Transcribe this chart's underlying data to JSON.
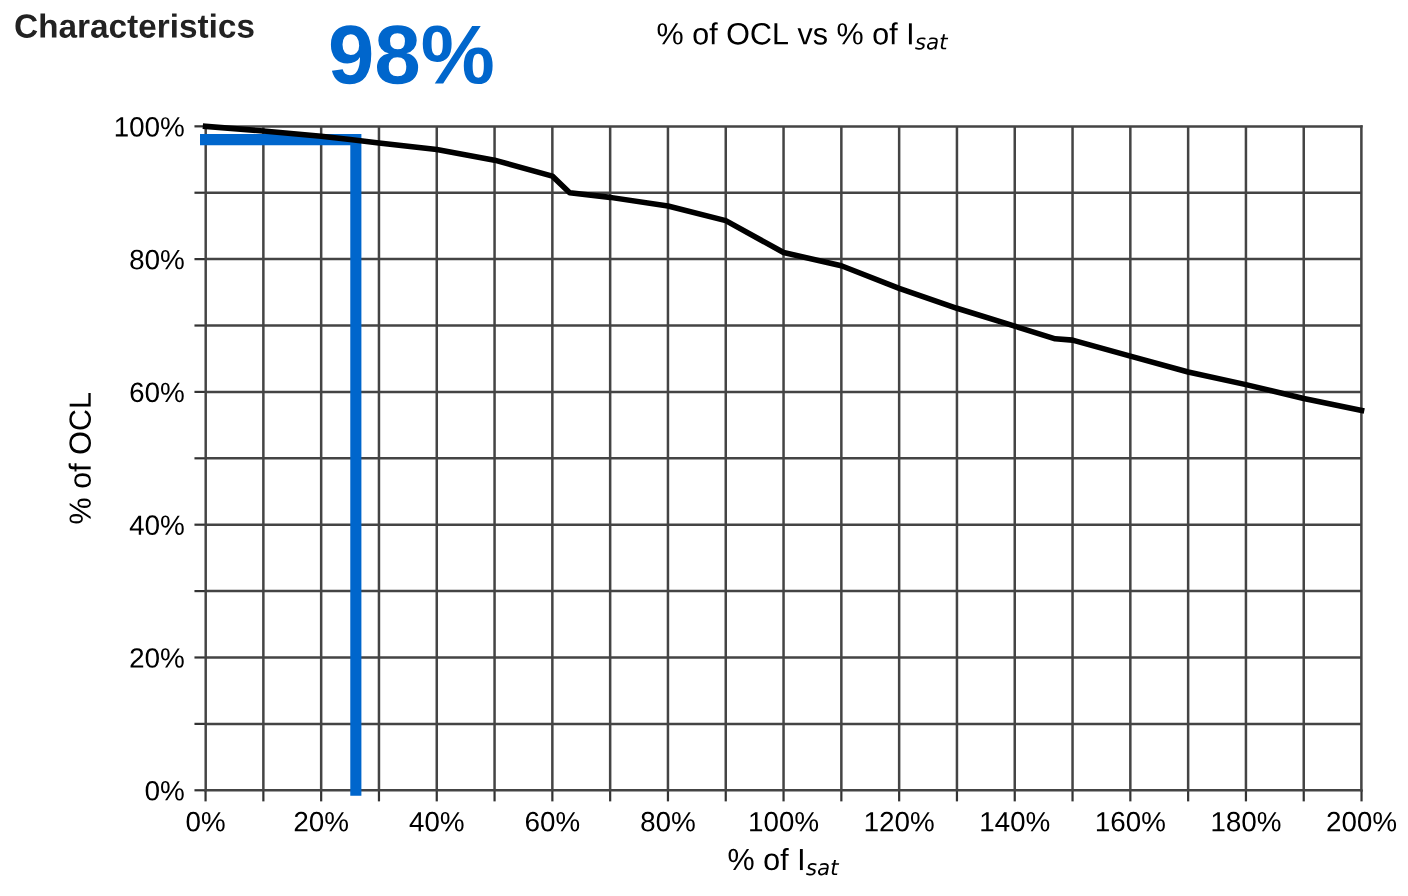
{
  "chart_data": {
    "type": "line",
    "title": "Characteristics",
    "subtitle": "% of OCL vs % of I$_{sat}$",
    "xlabel": "% of I$_{sat}$",
    "ylabel": "% of OCL",
    "series": [
      {
        "color": "#000000",
        "x": [
          0,
          10,
          20,
          25,
          30,
          40,
          50,
          60,
          63,
          70,
          80,
          90,
          100,
          110,
          120,
          130,
          140,
          147,
          150,
          160,
          170,
          180,
          190,
          200
        ],
        "values": [
          100,
          99.3,
          98.5,
          98,
          97.5,
          96.5,
          94.9,
          92.5,
          90,
          89.3,
          88,
          85.8,
          81,
          79,
          75.6,
          72.6,
          69.9,
          68,
          67.8,
          65.4,
          63,
          61.1,
          59,
          57.2
        ]
      },
      {
        "color": "#0066cc",
        "x": [
          0,
          26,
          26
        ],
        "values": [
          98,
          98,
          0
        ]
      }
    ],
    "annotations": [
      {
        "text": "98%",
        "x": 26,
        "y": 98
      }
    ],
    "xlim": [
      0,
      200
    ],
    "ylim": [
      0,
      100
    ],
    "xticks": [
      {
        "value": 0,
        "label": "0%"
      },
      {
        "value": 10,
        "label": null
      },
      {
        "value": 20,
        "label": "20%"
      },
      {
        "value": 30,
        "label": null
      },
      {
        "value": 40,
        "label": "40%"
      },
      {
        "value": 50,
        "label": null
      },
      {
        "value": 60,
        "label": "60%"
      },
      {
        "value": 70,
        "label": null
      },
      {
        "value": 80,
        "label": "80%"
      },
      {
        "value": 90,
        "label": null
      },
      {
        "value": 100,
        "label": "100%"
      },
      {
        "value": 110,
        "label": null
      },
      {
        "value": 120,
        "label": "120%"
      },
      {
        "value": 130,
        "label": null
      },
      {
        "value": 140,
        "label": "140%"
      },
      {
        "value": 150,
        "label": null
      },
      {
        "value": 160,
        "label": "160%"
      },
      {
        "value": 170,
        "label": null
      },
      {
        "value": 180,
        "label": "180%"
      },
      {
        "value": 190,
        "label": null
      },
      {
        "value": 200,
        "label": "200%"
      }
    ],
    "yticks": [
      {
        "value": 0,
        "label": "0%"
      },
      {
        "value": 10,
        "label": null
      },
      {
        "value": 20,
        "label": "20%"
      },
      {
        "value": 30,
        "label": null
      },
      {
        "value": 40,
        "label": "40%"
      },
      {
        "value": 50,
        "label": null
      },
      {
        "value": 60,
        "label": "60%"
      },
      {
        "value": 70,
        "label": null
      },
      {
        "value": 80,
        "label": "80%"
      },
      {
        "value": 90,
        "label": null
      },
      {
        "value": 100,
        "label": "100%"
      }
    ],
    "grid": true,
    "marker": "none",
    "line_style": "solid"
  }
}
